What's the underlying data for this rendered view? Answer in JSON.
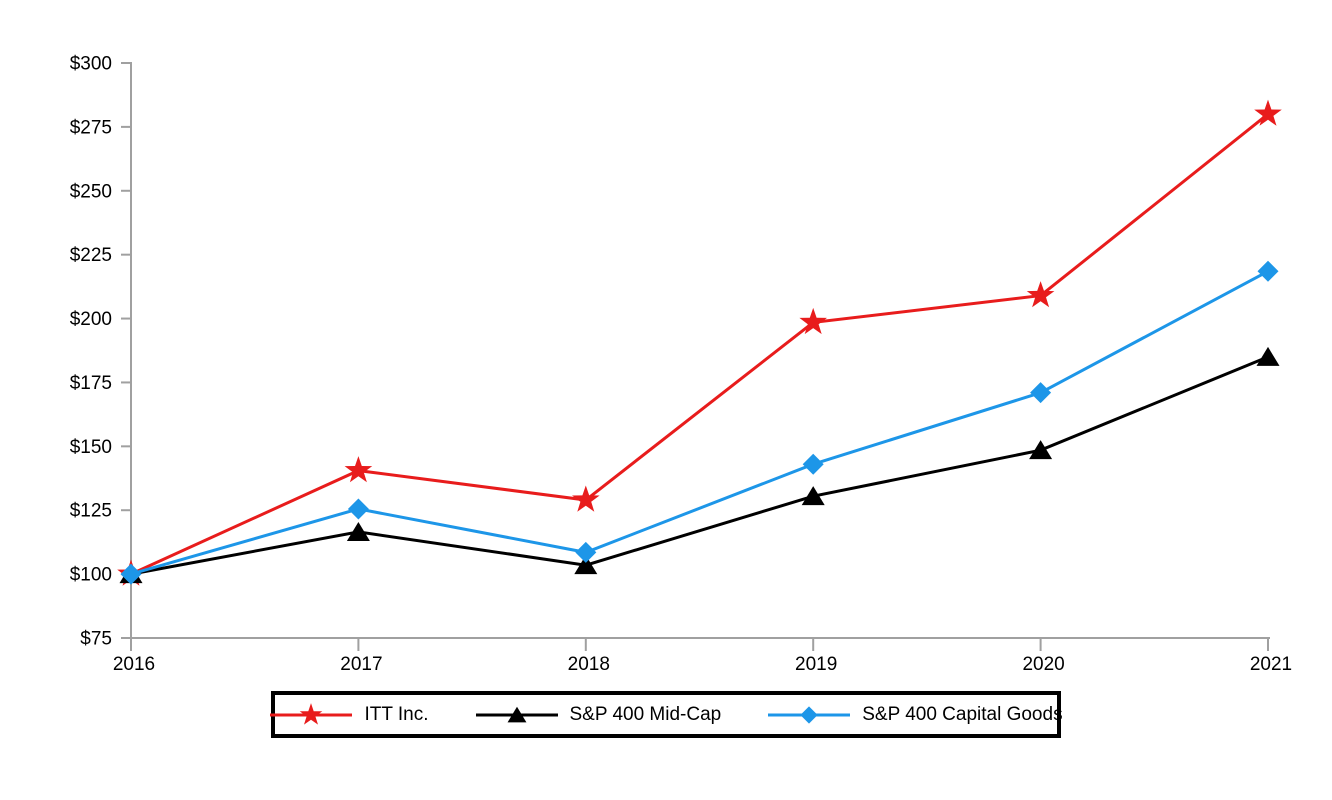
{
  "background_color": "#FFFFFF",
  "axis_color": "#A0A0A0",
  "text_color": "#000000",
  "legend_border_color": "#000000",
  "chart_data": {
    "type": "line",
    "title": "",
    "xlabel": "",
    "ylabel": "",
    "grid": false,
    "legend_position": "bottom",
    "x": [
      2016,
      2017,
      2018,
      2019,
      2020,
      2021
    ],
    "x_tick_labels": [
      "2016",
      "2017",
      "2018",
      "2019",
      "2020",
      "2021"
    ],
    "ylim": [
      75,
      300
    ],
    "y_ticks": {
      "values": [
        75,
        100,
        125,
        150,
        175,
        200,
        225,
        250,
        275,
        300
      ],
      "labels": [
        "$75",
        "$100",
        "$125",
        "$150",
        "$175",
        "$200",
        "$225",
        "$250",
        "$275",
        "$300"
      ]
    },
    "series": [
      {
        "name": "ITT Inc.",
        "color": "#E81C1C",
        "marker": "star",
        "values": [
          100,
          140.5,
          129,
          198.5,
          209,
          280
        ]
      },
      {
        "name": "S&P 400 Mid-Cap",
        "color": "#000000",
        "marker": "triangle",
        "values": [
          100,
          116.5,
          103.5,
          130.5,
          148.5,
          185
        ]
      },
      {
        "name": "S&P 400 Capital Goods",
        "color": "#1D96E8",
        "marker": "diamond",
        "values": [
          100,
          125.5,
          108.5,
          143,
          171,
          218.5
        ]
      }
    ]
  }
}
